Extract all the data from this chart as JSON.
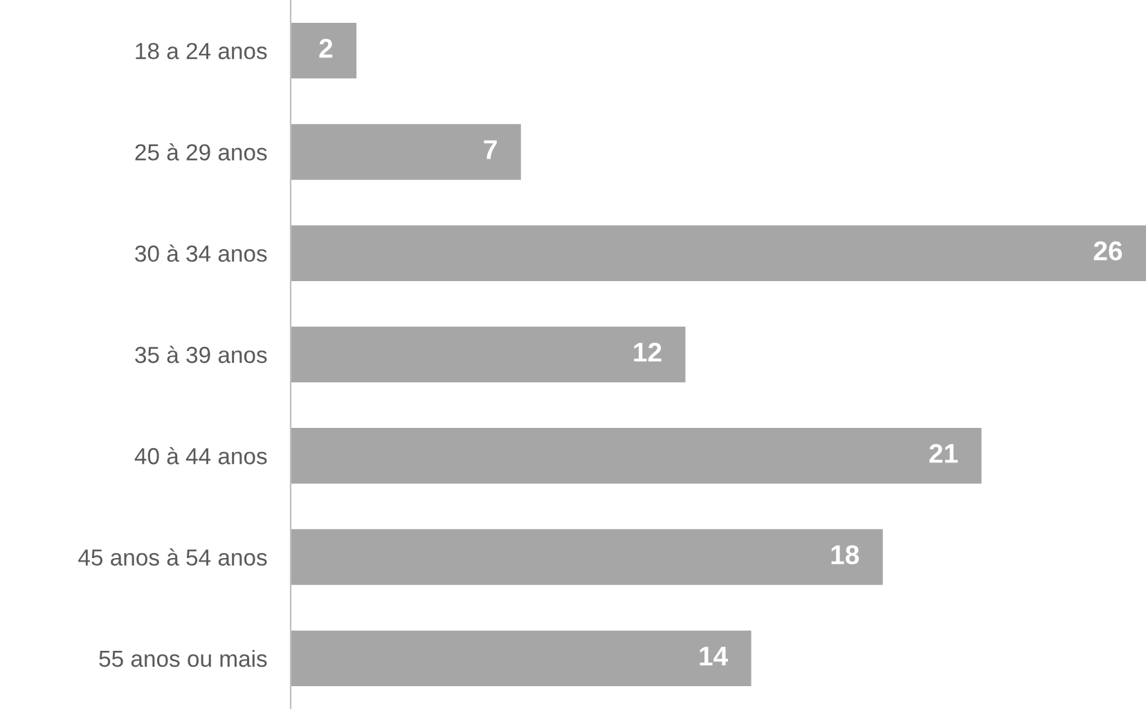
{
  "chart_data": {
    "type": "bar",
    "orientation": "horizontal",
    "categories": [
      "18 a 24 anos",
      "25 à 29 anos",
      "30 à 34 anos",
      "35 à 39 anos",
      "40 à 44 anos",
      "45 anos à 54 anos",
      "55 anos ou mais"
    ],
    "values": [
      2,
      7,
      26,
      12,
      21,
      18,
      14
    ],
    "color": "#a6a6a6",
    "data_labels": true,
    "grid": false,
    "legend": false
  }
}
